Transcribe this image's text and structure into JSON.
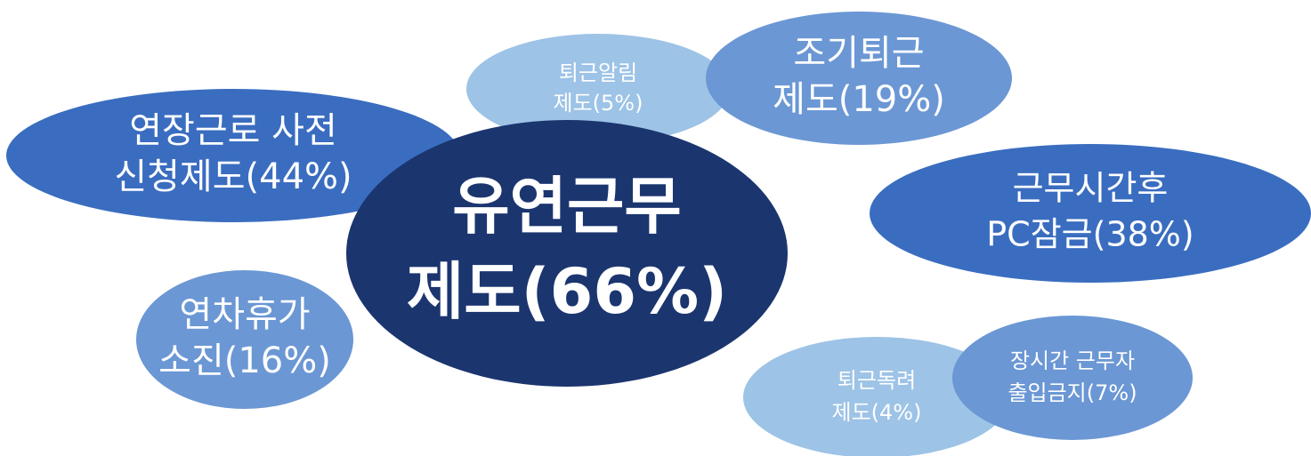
{
  "nodes": [
    {
      "lines": [
        "퇴근알림",
        "제도(5%)"
      ]
    },
    {
      "lines": [
        "조기퇴근",
        "제도(19%)"
      ]
    },
    {
      "lines": [
        "연장근로 사전",
        "신청제도(44%)"
      ]
    },
    {
      "lines": [
        "근무시간후",
        "PC잠금(38%)"
      ]
    },
    {
      "lines": [
        "연차휴가",
        "소진(16%)"
      ]
    },
    {
      "lines": [
        "퇴근독려",
        "제도(4%)"
      ]
    },
    {
      "lines": [
        "장시간 근무자",
        "출입금지(7%)"
      ]
    },
    {
      "lines": [
        "유연근무",
        "제도(66%)"
      ]
    }
  ]
}
